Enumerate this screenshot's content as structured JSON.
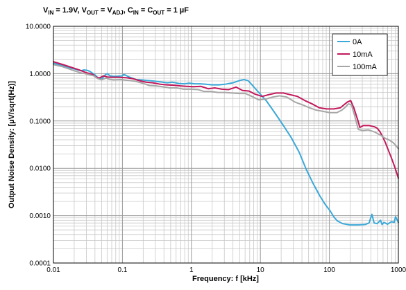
{
  "chart_data": {
    "type": "line",
    "title_parts": [
      {
        "t": "V"
      },
      {
        "t": "IN",
        "sub": true
      },
      {
        "t": " = 1.9V, V"
      },
      {
        "t": "OUT",
        "sub": true
      },
      {
        "t": " = V"
      },
      {
        "t": "ADJ",
        "sub": true
      },
      {
        "t": ", C"
      },
      {
        "t": "IN",
        "sub": true
      },
      {
        "t": " = C"
      },
      {
        "t": "OUT",
        "sub": true
      },
      {
        "t": " = 1 µF"
      }
    ],
    "xlabel": "Frequency: f [kHz]",
    "ylabel": "Output Noise Density: [µV/sqrt(Hz)]",
    "x_scale": "log",
    "y_scale": "log",
    "xlim": [
      0.01,
      1000
    ],
    "ylim": [
      0.0001,
      10
    ],
    "x_ticks": [
      {
        "v": 0.01,
        "label": "0.01"
      },
      {
        "v": 0.1,
        "label": "0.1"
      },
      {
        "v": 1,
        "label": "1"
      },
      {
        "v": 10,
        "label": "10"
      },
      {
        "v": 100,
        "label": "100"
      },
      {
        "v": 1000,
        "label": "1000"
      }
    ],
    "y_ticks": [
      {
        "v": 0.0001,
        "label": "0.0001"
      },
      {
        "v": 0.001,
        "label": "0.0010"
      },
      {
        "v": 0.01,
        "label": "0.0100"
      },
      {
        "v": 0.1,
        "label": "0.1000"
      },
      {
        "v": 1,
        "label": "1.0000"
      },
      {
        "v": 10,
        "label": "10.0000"
      }
    ],
    "grid": true,
    "legend_position": "top-right",
    "series": [
      {
        "name": "0A",
        "color": "#3AA8D8",
        "points": [
          [
            0.01,
            1.65
          ],
          [
            0.0136,
            1.48
          ],
          [
            0.0185,
            1.3
          ],
          [
            0.0251,
            1.15
          ],
          [
            0.0278,
            1.2
          ],
          [
            0.0313,
            1.17
          ],
          [
            0.0342,
            1.1
          ],
          [
            0.0398,
            0.95
          ],
          [
            0.0448,
            0.8
          ],
          [
            0.0505,
            0.78
          ],
          [
            0.0569,
            0.96
          ],
          [
            0.0605,
            1.0
          ],
          [
            0.0661,
            0.9
          ],
          [
            0.0725,
            0.88
          ],
          [
            0.0836,
            0.88
          ],
          [
            0.0999,
            0.9
          ],
          [
            0.1049,
            0.96
          ],
          [
            0.1108,
            0.93
          ],
          [
            0.125,
            0.85
          ],
          [
            0.14,
            0.8
          ],
          [
            0.158,
            0.75
          ],
          [
            0.188,
            0.74
          ],
          [
            0.223,
            0.72
          ],
          [
            0.28,
            0.7
          ],
          [
            0.352,
            0.67
          ],
          [
            0.444,
            0.64
          ],
          [
            0.528,
            0.66
          ],
          [
            0.663,
            0.62
          ],
          [
            0.788,
            0.61
          ],
          [
            0.937,
            0.63
          ],
          [
            1.11,
            0.61
          ],
          [
            1.33,
            0.61
          ],
          [
            1.58,
            0.6
          ],
          [
            1.99,
            0.58
          ],
          [
            2.5,
            0.58
          ],
          [
            3.15,
            0.6
          ],
          [
            3.99,
            0.64
          ],
          [
            5.05,
            0.72
          ],
          [
            5.79,
            0.75
          ],
          [
            6.65,
            0.71
          ],
          [
            7.55,
            0.58
          ],
          [
            9.48,
            0.4
          ],
          [
            12.36,
            0.26
          ],
          [
            16.12,
            0.15
          ],
          [
            21.0,
            0.085
          ],
          [
            27.9,
            0.045
          ],
          [
            36.4,
            0.022
          ],
          [
            46.2,
            0.0095
          ],
          [
            58.0,
            0.0048
          ],
          [
            72.9,
            0.0026
          ],
          [
            86.5,
            0.00175
          ],
          [
            103.1,
            0.00125
          ],
          [
            115.6,
            0.00095
          ],
          [
            129.7,
            0.00078
          ],
          [
            154.1,
            0.00068
          ],
          [
            195.1,
            0.00064
          ],
          [
            262.0,
            0.00064
          ],
          [
            329.0,
            0.00065
          ],
          [
            376.0,
            0.0007
          ],
          [
            413.0,
            0.00107
          ],
          [
            446.0,
            0.0007
          ],
          [
            492.0,
            0.00068
          ],
          [
            552.0,
            0.0008
          ],
          [
            580.0,
            0.00065
          ],
          [
            621.0,
            0.00072
          ],
          [
            697.0,
            0.00066
          ],
          [
            796.0,
            0.00075
          ],
          [
            869.0,
            0.00072
          ],
          [
            910.0,
            0.00095
          ],
          [
            1000,
            0.00072
          ]
        ]
      },
      {
        "name": "10mA",
        "color": "#C2185B",
        "points": [
          [
            0.01,
            1.78
          ],
          [
            0.0138,
            1.55
          ],
          [
            0.0176,
            1.38
          ],
          [
            0.0235,
            1.2
          ],
          [
            0.0298,
            1.05
          ],
          [
            0.0368,
            0.97
          ],
          [
            0.0413,
            0.85
          ],
          [
            0.0463,
            0.81
          ],
          [
            0.0534,
            0.9
          ],
          [
            0.06,
            0.85
          ],
          [
            0.0695,
            0.84
          ],
          [
            0.0879,
            0.84
          ],
          [
            0.113,
            0.82
          ],
          [
            0.143,
            0.78
          ],
          [
            0.183,
            0.7
          ],
          [
            0.22,
            0.66
          ],
          [
            0.275,
            0.64
          ],
          [
            0.348,
            0.6
          ],
          [
            0.436,
            0.58
          ],
          [
            0.546,
            0.57
          ],
          [
            0.691,
            0.55
          ],
          [
            0.85,
            0.54
          ],
          [
            1.06,
            0.53
          ],
          [
            1.37,
            0.54
          ],
          [
            1.75,
            0.48
          ],
          [
            2.18,
            0.5
          ],
          [
            2.77,
            0.47
          ],
          [
            3.46,
            0.46
          ],
          [
            4.45,
            0.52
          ],
          [
            5.52,
            0.44
          ],
          [
            6.8,
            0.43
          ],
          [
            8.34,
            0.37
          ],
          [
            10.59,
            0.33
          ],
          [
            13.25,
            0.36
          ],
          [
            16.87,
            0.39
          ],
          [
            21.49,
            0.39
          ],
          [
            26.9,
            0.36
          ],
          [
            34.5,
            0.33
          ],
          [
            44.1,
            0.27
          ],
          [
            56.1,
            0.23
          ],
          [
            71.5,
            0.19
          ],
          [
            91.2,
            0.18
          ],
          [
            116.2,
            0.18
          ],
          [
            144.1,
            0.19
          ],
          [
            181.4,
            0.25
          ],
          [
            203.6,
            0.27
          ],
          [
            226.2,
            0.19
          ],
          [
            260.3,
            0.1
          ],
          [
            276.6,
            0.073
          ],
          [
            310.4,
            0.08
          ],
          [
            379.2,
            0.08
          ],
          [
            454.8,
            0.075
          ],
          [
            495.0,
            0.07
          ],
          [
            538.8,
            0.06
          ],
          [
            586.0,
            0.048
          ],
          [
            648.0,
            0.035
          ],
          [
            717.0,
            0.024
          ],
          [
            788.0,
            0.017
          ],
          [
            880.0,
            0.011
          ],
          [
            1000,
            0.0062
          ]
        ]
      },
      {
        "name": "100mA",
        "color": "#A6A6A6",
        "points": [
          [
            0.01,
            1.55
          ],
          [
            0.0136,
            1.4
          ],
          [
            0.0178,
            1.22
          ],
          [
            0.0242,
            1.05
          ],
          [
            0.0316,
            0.97
          ],
          [
            0.0384,
            0.9
          ],
          [
            0.0436,
            0.79
          ],
          [
            0.0499,
            0.74
          ],
          [
            0.0583,
            0.81
          ],
          [
            0.0648,
            0.76
          ],
          [
            0.0741,
            0.74
          ],
          [
            0.0961,
            0.75
          ],
          [
            0.12,
            0.72
          ],
          [
            0.155,
            0.69
          ],
          [
            0.194,
            0.63
          ],
          [
            0.248,
            0.56
          ],
          [
            0.307,
            0.55
          ],
          [
            0.379,
            0.53
          ],
          [
            0.484,
            0.5
          ],
          [
            0.616,
            0.5
          ],
          [
            0.765,
            0.47
          ],
          [
            0.975,
            0.47
          ],
          [
            1.25,
            0.46
          ],
          [
            1.53,
            0.42
          ],
          [
            1.92,
            0.42
          ],
          [
            2.43,
            0.4
          ],
          [
            3.06,
            0.4
          ],
          [
            3.91,
            0.39
          ],
          [
            4.92,
            0.38
          ],
          [
            6.07,
            0.38
          ],
          [
            7.54,
            0.33
          ],
          [
            9.45,
            0.28
          ],
          [
            11.92,
            0.29
          ],
          [
            15.02,
            0.32
          ],
          [
            18.93,
            0.34
          ],
          [
            24.2,
            0.32
          ],
          [
            31.8,
            0.25
          ],
          [
            40.6,
            0.22
          ],
          [
            51.4,
            0.19
          ],
          [
            63.9,
            0.17
          ],
          [
            80.7,
            0.16
          ],
          [
            101.6,
            0.15
          ],
          [
            128.5,
            0.15
          ],
          [
            152.1,
            0.17
          ],
          [
            173.2,
            0.2
          ],
          [
            188.0,
            0.23
          ],
          [
            208.5,
            0.22
          ],
          [
            232.2,
            0.13
          ],
          [
            263.0,
            0.066
          ],
          [
            303.0,
            0.063
          ],
          [
            366.0,
            0.065
          ],
          [
            459.0,
            0.058
          ],
          [
            552.0,
            0.05
          ],
          [
            647.0,
            0.043
          ],
          [
            728.0,
            0.04
          ],
          [
            838.0,
            0.035
          ],
          [
            909.0,
            0.031
          ],
          [
            1000,
            0.026
          ]
        ]
      }
    ]
  }
}
